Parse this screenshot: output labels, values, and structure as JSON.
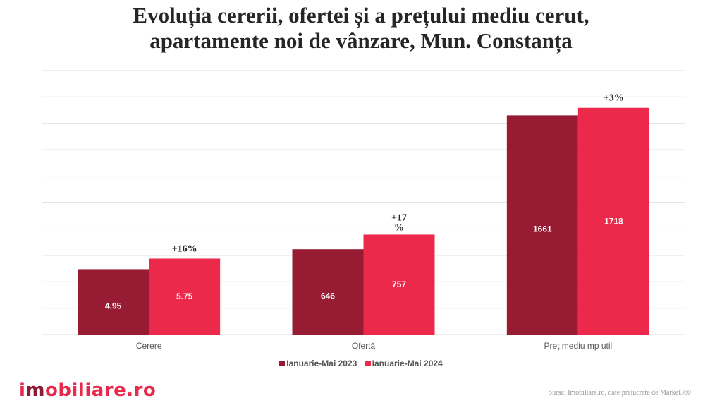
{
  "chart_data": {
    "type": "bar",
    "title": [
      "Evoluția cererii, ofertei și a prețului mediu cerut,",
      "apartamente noi de vânzare, Mun. Constanța"
    ],
    "xlabel": "",
    "ylabel": "",
    "grid": true,
    "legend_position": "bottom",
    "categories": [
      "Cerere",
      "Ofertă",
      "Preț mediu mp util"
    ],
    "category_scale_max": [
      20,
      2000,
      2000
    ],
    "series": [
      {
        "name": "Ianuarie-Mai 2023",
        "color": "#961b33",
        "values": [
          4.95,
          646,
          1661
        ],
        "labels": [
          "4.95",
          "646",
          "1661"
        ]
      },
      {
        "name": "Ianuarie-Mai 2024",
        "color": "#ec294b",
        "values": [
          5.75,
          757,
          1718
        ],
        "labels": [
          "5.75",
          "757",
          "1718"
        ]
      }
    ],
    "annotations": [
      {
        "category": "Cerere",
        "text": "+16%"
      },
      {
        "category": "Ofertă",
        "text": "+17\n%"
      },
      {
        "category": "Preț mediu mp util",
        "text": "+3%"
      }
    ],
    "gridline_count": 10
  },
  "branding": {
    "logo_prefix": "i",
    "logo_accent": "m",
    "logo_suffix": "obiliare.ro"
  },
  "source": "Sursa: Imobiliare.ro, date prelucrate de Market360"
}
